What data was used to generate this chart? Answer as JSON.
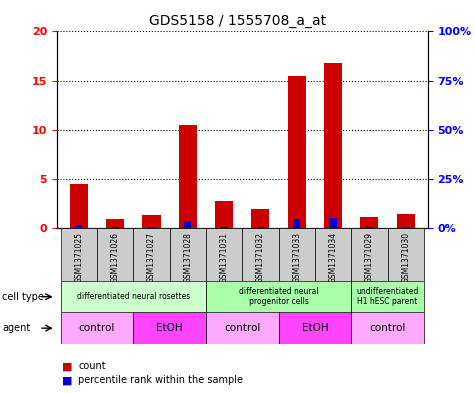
{
  "title": "GDS5158 / 1555708_a_at",
  "samples": [
    "GSM1371025",
    "GSM1371026",
    "GSM1371027",
    "GSM1371028",
    "GSM1371031",
    "GSM1371032",
    "GSM1371033",
    "GSM1371034",
    "GSM1371029",
    "GSM1371030"
  ],
  "counts": [
    4.5,
    0.9,
    1.3,
    10.5,
    2.7,
    1.9,
    15.5,
    16.8,
    1.1,
    1.4
  ],
  "percentile_ranks": [
    1.3,
    0.4,
    0.6,
    3.5,
    0.5,
    0.7,
    4.5,
    5.0,
    0.5,
    0.7
  ],
  "ylim_left": [
    0,
    20
  ],
  "ylim_right": [
    0,
    100
  ],
  "yticks_left": [
    0,
    5,
    10,
    15,
    20
  ],
  "yticks_right": [
    0,
    25,
    50,
    75,
    100
  ],
  "ytick_labels_left": [
    "0",
    "5",
    "10",
    "15",
    "20"
  ],
  "ytick_labels_right": [
    "0%",
    "25%",
    "50%",
    "75%",
    "100%"
  ],
  "cell_type_groups": [
    {
      "label": "differentiated neural rosettes",
      "start": 0,
      "end": 3,
      "color": "#ccffcc"
    },
    {
      "label": "differentiated neural\nprogenitor cells",
      "start": 4,
      "end": 7,
      "color": "#aaffaa"
    },
    {
      "label": "undifferentiated\nH1 hESC parent",
      "start": 8,
      "end": 9,
      "color": "#aaffaa"
    }
  ],
  "agent_groups": [
    {
      "label": "control",
      "start": 0,
      "end": 1,
      "color": "#ffaaff"
    },
    {
      "label": "EtOH",
      "start": 2,
      "end": 3,
      "color": "#ff44ff"
    },
    {
      "label": "control",
      "start": 4,
      "end": 5,
      "color": "#ffaaff"
    },
    {
      "label": "EtOH",
      "start": 6,
      "end": 7,
      "color": "#ff44ff"
    },
    {
      "label": "control",
      "start": 8,
      "end": 9,
      "color": "#ffaaff"
    }
  ],
  "bar_color": "#cc0000",
  "percentile_color": "#0000cc",
  "bar_width": 0.5,
  "bg_color": "#ffffff",
  "sample_bg_color": "#cccccc",
  "legend_items": [
    "count",
    "percentile rank within the sample"
  ],
  "legend_colors": [
    "#cc0000",
    "#0000cc"
  ]
}
